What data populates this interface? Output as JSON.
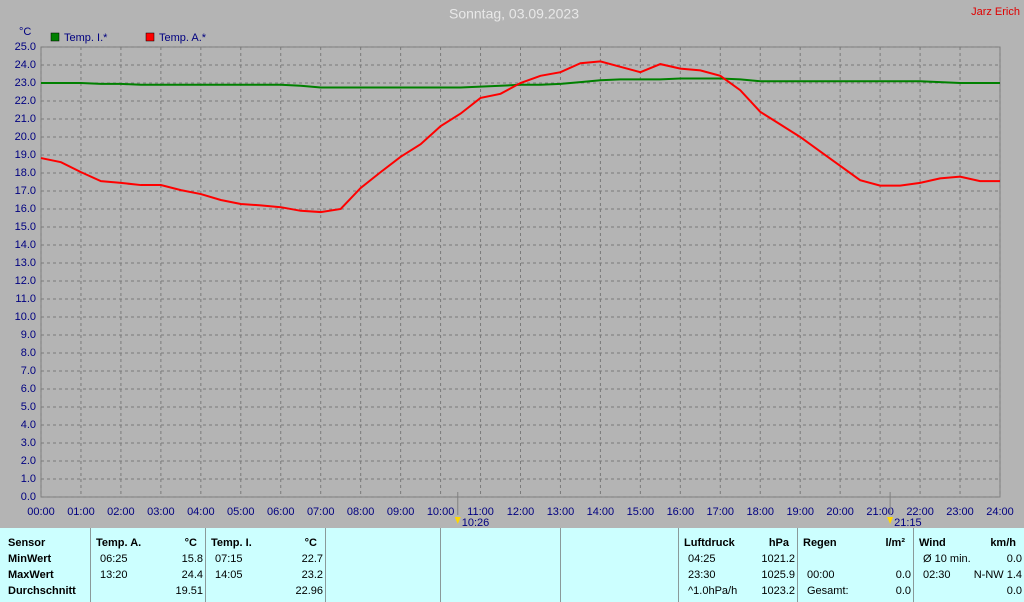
{
  "chart_data": {
    "type": "line",
    "title": "Sonntag, 03.09.2023",
    "author": "Jarz Erich",
    "y_unit": "°C",
    "x": [
      0,
      0.5,
      1,
      1.5,
      2,
      2.5,
      3,
      3.5,
      4,
      4.5,
      5,
      5.5,
      6,
      6.5,
      7,
      7.5,
      8,
      8.5,
      9,
      9.5,
      10,
      10.5,
      11,
      11.5,
      12,
      12.5,
      13,
      13.5,
      14,
      14.5,
      15,
      15.5,
      16,
      16.5,
      17,
      17.5,
      18,
      18.5,
      19,
      19.5,
      20,
      20.5,
      21,
      21.5,
      22,
      22.5,
      23,
      23.5,
      24
    ],
    "series": [
      {
        "name": "Temp. I.*",
        "color": "#008000",
        "values": [
          23.0,
          23.0,
          23.0,
          22.95,
          22.95,
          22.9,
          22.9,
          22.9,
          22.9,
          22.9,
          22.9,
          22.9,
          22.9,
          22.85,
          22.75,
          22.75,
          22.75,
          22.75,
          22.75,
          22.75,
          22.75,
          22.75,
          22.8,
          22.85,
          22.9,
          22.9,
          22.95,
          23.05,
          23.15,
          23.2,
          23.2,
          23.2,
          23.25,
          23.25,
          23.25,
          23.2,
          23.1,
          23.1,
          23.1,
          23.1,
          23.1,
          23.1,
          23.1,
          23.1,
          23.1,
          23.05,
          23.0,
          23.0,
          23.0
        ]
      },
      {
        "name": "Temp. A.*",
        "color": "#ff0000",
        "values": [
          18.83,
          18.6,
          18.05,
          17.55,
          17.45,
          17.33,
          17.33,
          17.05,
          16.83,
          16.5,
          16.28,
          16.2,
          16.1,
          15.9,
          15.83,
          16.0,
          17.17,
          18.05,
          18.9,
          19.6,
          20.6,
          21.3,
          22.17,
          22.4,
          23.0,
          23.4,
          23.6,
          24.1,
          24.2,
          23.9,
          23.6,
          24.05,
          23.8,
          23.7,
          23.4,
          22.6,
          21.4,
          20.7,
          20.0,
          19.2,
          18.4,
          17.6,
          17.3,
          17.3,
          17.45,
          17.7,
          17.8,
          17.55,
          17.55
        ]
      }
    ],
    "xlim": [
      0,
      24
    ],
    "ylim": [
      0,
      25
    ],
    "grid": true,
    "xticks": [
      {
        "value": 0,
        "label": "00:00"
      },
      {
        "value": 1,
        "label": "01:00"
      },
      {
        "value": 2,
        "label": "02:00"
      },
      {
        "value": 3,
        "label": "03:00"
      },
      {
        "value": 4,
        "label": "04:00"
      },
      {
        "value": 5,
        "label": "05:00"
      },
      {
        "value": 6,
        "label": "06:00"
      },
      {
        "value": 7,
        "label": "07:00"
      },
      {
        "value": 8,
        "label": "08:00"
      },
      {
        "value": 9,
        "label": "09:00"
      },
      {
        "value": 10,
        "label": "10:00"
      },
      {
        "value": 11,
        "label": "11:00"
      },
      {
        "value": 12,
        "label": "12:00"
      },
      {
        "value": 13,
        "label": "13:00"
      },
      {
        "value": 14,
        "label": "14:00"
      },
      {
        "value": 15,
        "label": "15:00"
      },
      {
        "value": 16,
        "label": "16:00"
      },
      {
        "value": 17,
        "label": "17:00"
      },
      {
        "value": 18,
        "label": "18:00"
      },
      {
        "value": 19,
        "label": "19:00"
      },
      {
        "value": 20,
        "label": "20:00"
      },
      {
        "value": 21,
        "label": "21:00"
      },
      {
        "value": 22,
        "label": "22:00"
      },
      {
        "value": 23,
        "label": "23:00"
      },
      {
        "value": 24,
        "label": "24:00"
      }
    ],
    "yticks": [
      {
        "value": 0,
        "label": "0.0"
      },
      {
        "value": 1,
        "label": "1.0"
      },
      {
        "value": 2,
        "label": "2.0"
      },
      {
        "value": 3,
        "label": "3.0"
      },
      {
        "value": 4,
        "label": "4.0"
      },
      {
        "value": 5,
        "label": "5.0"
      },
      {
        "value": 6,
        "label": "6.0"
      },
      {
        "value": 7,
        "label": "7.0"
      },
      {
        "value": 8,
        "label": "8.0"
      },
      {
        "value": 9,
        "label": "9.0"
      },
      {
        "value": 10,
        "label": "10.0"
      },
      {
        "value": 11,
        "label": "11.0"
      },
      {
        "value": 12,
        "label": "12.0"
      },
      {
        "value": 13,
        "label": "13.0"
      },
      {
        "value": 14,
        "label": "14.0"
      },
      {
        "value": 15,
        "label": "15.0"
      },
      {
        "value": 16,
        "label": "16.0"
      },
      {
        "value": 17,
        "label": "17.0"
      },
      {
        "value": 18,
        "label": "18.0"
      },
      {
        "value": 19,
        "label": "19.0"
      },
      {
        "value": 20,
        "label": "20.0"
      },
      {
        "value": 21,
        "label": "21.0"
      },
      {
        "value": 22,
        "label": "22.0"
      },
      {
        "value": 23,
        "label": "23.0"
      },
      {
        "value": 24,
        "label": "24.0"
      },
      {
        "value": 25,
        "label": "25.0"
      }
    ],
    "markers": [
      {
        "value": 10.43,
        "label": "10:26"
      },
      {
        "value": 21.25,
        "label": "21:15"
      }
    ]
  },
  "sensor_table": {
    "row_labels": [
      "Sensor",
      "MinWert",
      "MaxWert",
      "Durchschnitt"
    ],
    "blocks": [
      {
        "header": [
          "Temp. A.",
          "°C"
        ],
        "rows": [
          [
            "06:25",
            "15.8"
          ],
          [
            "13:20",
            "24.4"
          ],
          [
            null,
            "19.51"
          ]
        ]
      },
      {
        "header": [
          "Temp. I.",
          "°C"
        ],
        "rows": [
          [
            "07:15",
            "22.7"
          ],
          [
            "14:05",
            "23.2"
          ],
          [
            null,
            "22.96"
          ]
        ]
      },
      {
        "header": [
          "Luftdruck",
          "hPa"
        ],
        "rows": [
          [
            "04:25",
            "1021.2"
          ],
          [
            "23:30",
            "1025.9"
          ],
          [
            "^1.0hPa/h",
            "1023.2"
          ]
        ]
      },
      {
        "header": [
          "Regen",
          "l/m²"
        ],
        "rows": [
          [
            null,
            null
          ],
          [
            "00:00",
            "0.0"
          ],
          [
            "Gesamt:",
            "0.0"
          ]
        ]
      },
      {
        "header": [
          "Wind",
          "km/h"
        ],
        "rows": [
          [
            "Ø 10 min.",
            "0.0"
          ],
          [
            "02:30",
            "N-NW 1.4"
          ],
          [
            null,
            "0.0"
          ]
        ]
      }
    ]
  }
}
